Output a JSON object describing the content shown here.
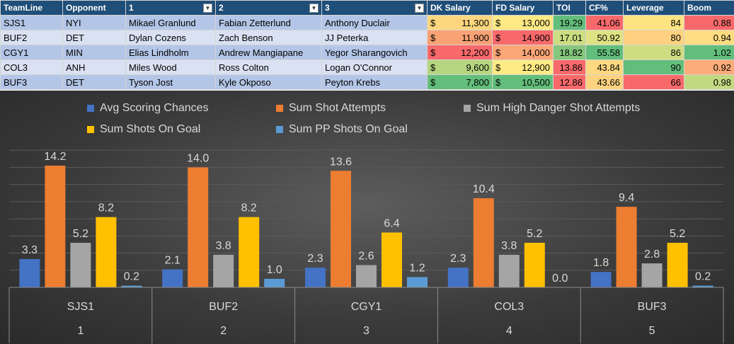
{
  "table": {
    "headers": [
      "TeamLine",
      "Opponent",
      "1",
      "2",
      "3",
      "DK Salary",
      "FD Salary",
      "TOI",
      "CF%",
      "Leverage",
      "Boom"
    ],
    "filter_headers": [
      "1",
      "2",
      "3"
    ],
    "currency_symbol": "$",
    "rows": [
      {
        "team": "SJS1",
        "opp": "NYI",
        "p1": "Mikael Granlund",
        "p2": "Fabian Zetterlund",
        "p3": "Anthony Duclair",
        "dk": "11,300",
        "fd": "13,000",
        "toi": "19.29",
        "cf": "41.06",
        "lev": "84",
        "boom": "0.88",
        "colors": {
          "dk": "#fcd67f",
          "fd": "#ffe984",
          "toi": "#63be7b",
          "cf": "#f8696b",
          "lev": "#fee382",
          "boom": "#f8696b"
        }
      },
      {
        "team": "BUF2",
        "opp": "DET",
        "p1": "Dylan Cozens",
        "p2": "Zach Benson",
        "p3": "JJ Peterka",
        "dk": "11,900",
        "fd": "14,900",
        "toi": "17.01",
        "cf": "50.92",
        "lev": "80",
        "boom": "0.94",
        "colors": {
          "dk": "#f9a275",
          "fd": "#f8696b",
          "toi": "#ccdd82",
          "cf": "#dfe283",
          "lev": "#fdd17f",
          "boom": "#fedc81"
        }
      },
      {
        "team": "CGY1",
        "opp": "MIN",
        "p1": "Elias Lindholm",
        "p2": "Andrew Mangiapane",
        "p3": "Yegor Sharangovich",
        "dk": "12,200",
        "fd": "14,000",
        "toi": "18.82",
        "cf": "55.58",
        "lev": "86",
        "boom": "1.02",
        "colors": {
          "dk": "#f8696b",
          "fd": "#fba677",
          "toi": "#84c77d",
          "cf": "#63be7b",
          "lev": "#cfdd82",
          "boom": "#63be7b"
        }
      },
      {
        "team": "COL3",
        "opp": "ANH",
        "p1": "Miles Wood",
        "p2": "Ross Colton",
        "p3": "Logan O'Connor",
        "dk": "9,600",
        "fd": "12,900",
        "toi": "13.86",
        "cf": "43.84",
        "lev": "90",
        "boom": "0.92",
        "colors": {
          "dk": "#b5d580",
          "fd": "#ffeb84",
          "toi": "#f8696b",
          "cf": "#fed980",
          "lev": "#63be7b",
          "boom": "#fbac78"
        }
      },
      {
        "team": "BUF3",
        "opp": "DET",
        "p1": "Tyson Jost",
        "p2": "Kyle Okposo",
        "p3": "Peyton Krebs",
        "dk": "7,800",
        "fd": "10,500",
        "toi": "12.86",
        "cf": "43.66",
        "lev": "66",
        "boom": "0.98",
        "colors": {
          "dk": "#63be7b",
          "fd": "#63be7b",
          "toi": "#f8696b",
          "cf": "#fdd27f",
          "lev": "#f8696b",
          "boom": "#c1d981"
        }
      }
    ]
  },
  "chart_data": {
    "type": "bar",
    "categories": [
      [
        "SJS1",
        "1"
      ],
      [
        "BUF2",
        "2"
      ],
      [
        "CGY1",
        "3"
      ],
      [
        "COL3",
        "4"
      ],
      [
        "BUF3",
        "5"
      ]
    ],
    "series": [
      {
        "name": "Avg Scoring Chances",
        "values": [
          3.3,
          2.1,
          2.3,
          2.3,
          1.8
        ],
        "color": "#4472c4"
      },
      {
        "name": "Sum Shot Attempts",
        "values": [
          14.2,
          14.0,
          13.6,
          10.4,
          9.4
        ],
        "color": "#ed7d31"
      },
      {
        "name": "Sum High Danger Shot Attempts",
        "values": [
          5.2,
          3.8,
          2.6,
          3.8,
          2.8
        ],
        "color": "#a5a5a5"
      },
      {
        "name": "Sum Shots On Goal",
        "values": [
          8.2,
          8.2,
          6.4,
          5.2,
          5.2
        ],
        "color": "#ffc000"
      },
      {
        "name": "Sum PP Shots On Goal",
        "values": [
          0.2,
          1.0,
          1.2,
          0.0,
          0.2
        ],
        "color": "#5b9bd5"
      }
    ],
    "data_labels": true,
    "label_format": "0.0",
    "ylim": [
      0,
      16
    ],
    "legend_position": "top",
    "gridlines": true,
    "background": "dark"
  }
}
